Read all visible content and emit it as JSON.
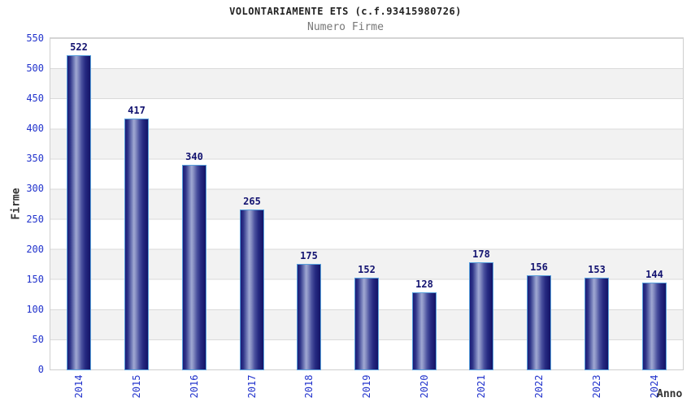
{
  "header": {
    "title": "VOLONTARIAMENTE ETS (c.f.93415980726)",
    "subtitle": "Numero Firme"
  },
  "chart_data": {
    "type": "bar",
    "title": "VOLONTARIAMENTE ETS (c.f.93415980726)",
    "subtitle": "Numero Firme",
    "categories": [
      "2014",
      "2015",
      "2016",
      "2017",
      "2018",
      "2019",
      "2020",
      "2021",
      "2022",
      "2023",
      "2024"
    ],
    "values": [
      522,
      417,
      340,
      265,
      175,
      152,
      128,
      178,
      156,
      153,
      144
    ],
    "xlabel": "Anno",
    "ylabel": "Firme",
    "ylim": [
      0,
      550
    ],
    "y_ticks": [
      0,
      50,
      100,
      150,
      200,
      250,
      300,
      350,
      400,
      450,
      500,
      550
    ],
    "grid": "horizontal gridlines every 50 with alternating white/gray bands",
    "legend": "none",
    "colors": {
      "bar_dark": "#131366",
      "bar_light": "#a0a8d2",
      "bar_border": "#58a0dc",
      "tick_label": "#2233cc",
      "value_label": "#131370",
      "band_gray": "#f2f2f2",
      "gridline": "#d9d9d9",
      "subtitle_text": "#777777"
    }
  }
}
